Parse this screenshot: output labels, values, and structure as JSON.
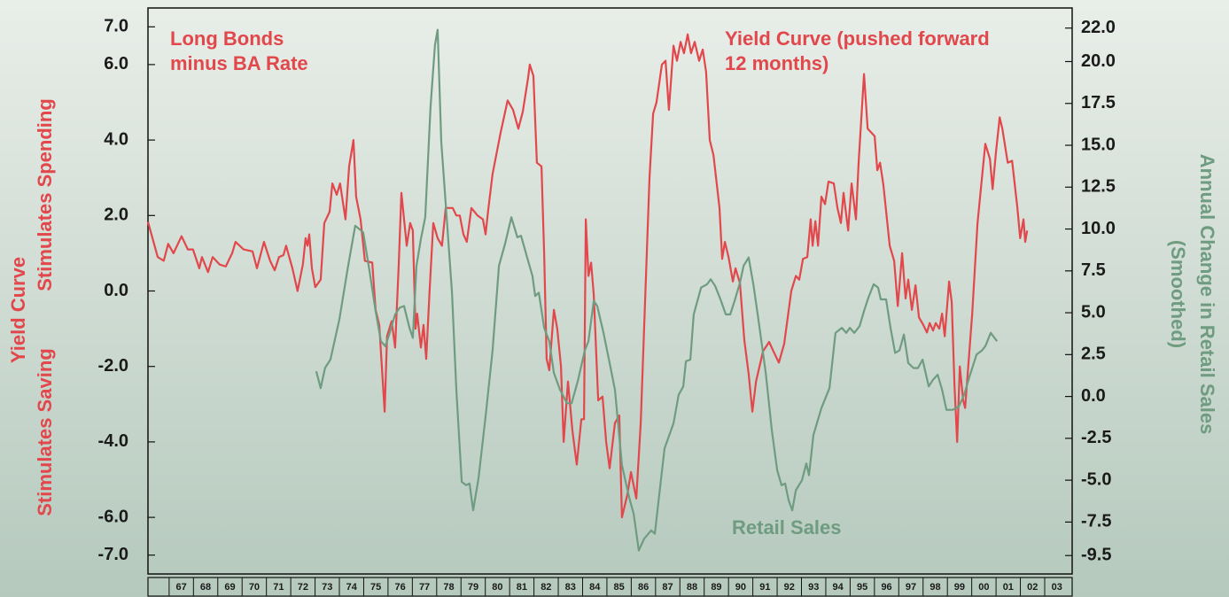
{
  "chart_data": {
    "type": "line",
    "annotations": [
      {
        "text": [
          "Long Bonds",
          "minus BA Rate"
        ],
        "color": "#e2474b"
      },
      {
        "text": [
          "Yield Curve (pushed forward",
          "12 months)"
        ],
        "color": "#e2474b"
      }
    ],
    "ylabel": {
      "main": "Yield Curve",
      "upper": "Stimulates Spending",
      "lower": "Stimulates Saving"
    },
    "y2label": [
      "Annual Change in Retail Sales",
      "(Smoothed)"
    ],
    "xlim": [
      1966.13,
      2004.13
    ],
    "xticks": [
      {
        "value": 1967,
        "label": "67"
      },
      {
        "value": 1968,
        "label": "68"
      },
      {
        "value": 1969,
        "label": "69"
      },
      {
        "value": 1970,
        "label": "70"
      },
      {
        "value": 1971,
        "label": "71"
      },
      {
        "value": 1972,
        "label": "72"
      },
      {
        "value": 1973,
        "label": "73"
      },
      {
        "value": 1974,
        "label": "74"
      },
      {
        "value": 1975,
        "label": "75"
      },
      {
        "value": 1976,
        "label": "76"
      },
      {
        "value": 1977,
        "label": "77"
      },
      {
        "value": 1978,
        "label": "78"
      },
      {
        "value": 1979,
        "label": "79"
      },
      {
        "value": 1980,
        "label": "80"
      },
      {
        "value": 1981,
        "label": "81"
      },
      {
        "value": 1982,
        "label": "82"
      },
      {
        "value": 1983,
        "label": "83"
      },
      {
        "value": 1984,
        "label": "84"
      },
      {
        "value": 1985,
        "label": "85"
      },
      {
        "value": 1986,
        "label": "86"
      },
      {
        "value": 1987,
        "label": "87"
      },
      {
        "value": 1988,
        "label": "88"
      },
      {
        "value": 1989,
        "label": "89"
      },
      {
        "value": 1990,
        "label": "90"
      },
      {
        "value": 1991,
        "label": "91"
      },
      {
        "value": 1992,
        "label": "92"
      },
      {
        "value": 1993,
        "label": "93"
      },
      {
        "value": 1994,
        "label": "94"
      },
      {
        "value": 1995,
        "label": "95"
      },
      {
        "value": 1996,
        "label": "96"
      },
      {
        "value": 1997,
        "label": "97"
      },
      {
        "value": 1998,
        "label": "98"
      },
      {
        "value": 1999,
        "label": "99"
      },
      {
        "value": 2000,
        "label": "00"
      },
      {
        "value": 2001,
        "label": "01"
      },
      {
        "value": 2002,
        "label": "02"
      },
      {
        "value": 2003,
        "label": "03"
      }
    ],
    "ylim": [
      -7.5,
      7.5
    ],
    "yticks": [
      {
        "value": 7,
        "label": "7.0"
      },
      {
        "value": 6,
        "label": "6.0"
      },
      {
        "value": 4,
        "label": "4.0"
      },
      {
        "value": 2,
        "label": "2.0"
      },
      {
        "value": 0,
        "label": "0.0"
      },
      {
        "value": -2,
        "label": "-2.0"
      },
      {
        "value": -4,
        "label": "-4.0"
      },
      {
        "value": -6,
        "label": "-6.0"
      },
      {
        "value": -7,
        "label": "-7.0"
      }
    ],
    "y2lim": [
      -10.6,
      23.2
    ],
    "y2ticks": [
      {
        "value": 22,
        "label": "22.0"
      },
      {
        "value": 20,
        "label": "20.0"
      },
      {
        "value": 17.5,
        "label": "17.5"
      },
      {
        "value": 15,
        "label": "15.0"
      },
      {
        "value": 12.5,
        "label": "12.5"
      },
      {
        "value": 10,
        "label": "10.0"
      },
      {
        "value": 7.5,
        "label": "7.5"
      },
      {
        "value": 5,
        "label": "5.0"
      },
      {
        "value": 2.5,
        "label": "2.5"
      },
      {
        "value": 0,
        "label": "0.0"
      },
      {
        "value": -2.5,
        "label": "-2.5"
      },
      {
        "value": -5,
        "label": "-5.0"
      },
      {
        "value": -7.5,
        "label": "-7.5"
      },
      {
        "value": -9.5,
        "label": "-9.5"
      }
    ],
    "series": [
      {
        "color": "#e2474b",
        "x": [
          1966.13,
          1966.53,
          1966.78,
          1966.96,
          1967.18,
          1967.51,
          1967.77,
          1967.98,
          1968.24,
          1968.35,
          1968.6,
          1968.79,
          1969.08,
          1969.33,
          1969.59,
          1969.73,
          1970.06,
          1970.43,
          1970.61,
          1970.9,
          1971.15,
          1971.34,
          1971.52,
          1971.7,
          1971.81,
          1972.07,
          1972.28,
          1972.5,
          1972.61,
          1972.69,
          1972.76,
          1972.87,
          1973.01,
          1973.23,
          1973.38,
          1973.6,
          1973.71,
          1973.89,
          1974.03,
          1974.25,
          1974.4,
          1974.58,
          1974.69,
          1974.87,
          1975.05,
          1975.35,
          1975.49,
          1975.64,
          1975.86,
          1975.96,
          1976.15,
          1976.29,
          1976.44,
          1976.55,
          1976.77,
          1976.91,
          1977.02,
          1977.13,
          1977.2,
          1977.35,
          1977.46,
          1977.57,
          1977.71,
          1977.86,
          1978.04,
          1978.22,
          1978.37,
          1978.66,
          1978.81,
          1978.95,
          1979.1,
          1979.24,
          1979.43,
          1979.68,
          1979.9,
          1980.01,
          1980.12,
          1980.3,
          1980.63,
          1980.92,
          1981.14,
          1981.36,
          1981.54,
          1981.76,
          1981.83,
          1981.98,
          1982.12,
          1982.31,
          1982.42,
          1982.52,
          1982.63,
          1982.82,
          1982.96,
          1983.11,
          1983.22,
          1983.4,
          1983.58,
          1983.76,
          1983.95,
          1984.06,
          1984.13,
          1984.24,
          1984.35,
          1984.46,
          1984.64,
          1984.82,
          1984.97,
          1985.11,
          1985.33,
          1985.51,
          1985.62,
          1985.84,
          1985.99,
          1986.21,
          1986.39,
          1986.75,
          1986.9,
          1987.04,
          1987.26,
          1987.41,
          1987.55,
          1987.74,
          1987.88,
          1988.03,
          1988.17,
          1988.32,
          1988.46,
          1988.61,
          1988.79,
          1988.94,
          1989.08,
          1989.23,
          1989.38,
          1989.63,
          1989.74,
          1989.85,
          1990.0,
          1990.18,
          1990.29,
          1990.47,
          1990.65,
          1990.83,
          1990.98,
          1991.13,
          1991.42,
          1991.67,
          1991.85,
          1992.07,
          1992.29,
          1992.58,
          1992.77,
          1992.91,
          1993.06,
          1993.24,
          1993.38,
          1993.46,
          1993.57,
          1993.68,
          1993.82,
          1993.97,
          1994.11,
          1994.33,
          1994.48,
          1994.62,
          1994.73,
          1994.92,
          1995.06,
          1995.24,
          1995.35,
          1995.57,
          1995.72,
          1996.01,
          1996.12,
          1996.23,
          1996.37,
          1996.63,
          1996.81,
          1996.96,
          1997.14,
          1997.28,
          1997.39,
          1997.54,
          1997.69,
          1997.83,
          1998.01,
          1998.16,
          1998.27,
          1998.41,
          1998.52,
          1998.67,
          1998.78,
          1998.89,
          1999.07,
          1999.18,
          1999.29,
          1999.4,
          1999.51,
          1999.65,
          1999.73,
          2000.02,
          2000.24,
          2000.42,
          2000.56,
          2000.75,
          2000.86,
          2001.0,
          2001.15,
          2001.26,
          2001.48,
          2001.66,
          2001.88,
          2001.99,
          2002.13,
          2002.2,
          2002.28
        ],
        "values": [
          1.83,
          0.9,
          0.8,
          1.25,
          1.0,
          1.45,
          1.1,
          1.1,
          0.6,
          0.9,
          0.5,
          0.9,
          0.7,
          0.65,
          1.0,
          1.3,
          1.1,
          1.05,
          0.6,
          1.3,
          0.8,
          0.55,
          0.9,
          0.95,
          1.2,
          0.6,
          0.0,
          0.7,
          1.4,
          1.2,
          1.5,
          0.6,
          0.1,
          0.3,
          1.8,
          2.1,
          2.85,
          2.55,
          2.85,
          1.9,
          3.3,
          4.0,
          2.5,
          1.9,
          0.8,
          0.75,
          -0.5,
          -0.9,
          -3.2,
          -1.2,
          -0.8,
          -1.5,
          0.7,
          2.6,
          1.2,
          1.8,
          1.6,
          -1.0,
          -0.6,
          -1.5,
          -0.9,
          -1.8,
          0.0,
          1.8,
          1.4,
          1.2,
          2.2,
          2.2,
          2.0,
          2.0,
          1.5,
          1.3,
          2.2,
          2.0,
          1.9,
          1.5,
          2.15,
          3.1,
          4.2,
          5.05,
          4.8,
          4.3,
          4.75,
          5.65,
          6.0,
          5.7,
          3.4,
          3.3,
          1.0,
          -1.8,
          -2.1,
          -0.5,
          -1.0,
          -2.0,
          -4.0,
          -2.4,
          -3.7,
          -4.6,
          -3.4,
          -3.4,
          1.9,
          0.4,
          0.75,
          -0.1,
          -2.9,
          -2.8,
          -4.0,
          -4.7,
          -3.5,
          -3.3,
          -6.0,
          -5.4,
          -4.8,
          -5.5,
          -3.5,
          3.0,
          4.7,
          5.0,
          6.0,
          6.1,
          4.8,
          6.5,
          6.1,
          6.6,
          6.3,
          6.8,
          6.3,
          6.6,
          6.1,
          6.4,
          5.8,
          4.0,
          3.6,
          2.2,
          0.85,
          1.3,
          0.9,
          0.25,
          0.6,
          0.2,
          -1.3,
          -2.2,
          -3.2,
          -2.4,
          -1.6,
          -1.35,
          -1.6,
          -1.9,
          -1.4,
          0.0,
          0.4,
          0.3,
          0.85,
          0.9,
          1.9,
          1.2,
          1.85,
          1.2,
          2.5,
          2.3,
          2.9,
          2.85,
          2.2,
          1.8,
          2.6,
          1.6,
          2.85,
          1.9,
          3.4,
          5.75,
          4.3,
          4.1,
          3.2,
          3.4,
          2.8,
          1.2,
          0.8,
          -0.4,
          1.0,
          -0.2,
          0.3,
          -0.5,
          0.15,
          -0.7,
          -0.9,
          -1.1,
          -0.85,
          -1.05,
          -0.85,
          -1.0,
          -0.6,
          -1.2,
          0.25,
          -0.3,
          -2.5,
          -4.0,
          -2.0,
          -2.9,
          -3.1,
          -0.6,
          1.8,
          3.0,
          3.9,
          3.5,
          2.7,
          3.7,
          4.6,
          4.3,
          3.4,
          3.45,
          2.2,
          1.4,
          1.9,
          1.3,
          1.6
        ]
      },
      {
        "name": "Retail Sales",
        "color": "#6f9c80",
        "axis": "y2",
        "x": [
          1973.05,
          1973.23,
          1973.41,
          1973.63,
          1974.0,
          1974.36,
          1974.65,
          1974.98,
          1975.24,
          1975.49,
          1975.71,
          1975.89,
          1976.07,
          1976.29,
          1976.48,
          1976.66,
          1976.88,
          1977.02,
          1977.17,
          1977.35,
          1977.53,
          1977.75,
          1977.93,
          1978.04,
          1978.19,
          1978.41,
          1978.63,
          1978.81,
          1979.03,
          1979.21,
          1979.35,
          1979.5,
          1979.72,
          1980.01,
          1980.3,
          1980.56,
          1980.81,
          1981.07,
          1981.32,
          1981.47,
          1981.72,
          1981.94,
          1982.05,
          1982.2,
          1982.42,
          1982.63,
          1982.82,
          1983.07,
          1983.36,
          1983.55,
          1983.8,
          1984.09,
          1984.24,
          1984.46,
          1984.6,
          1984.86,
          1985.11,
          1985.33,
          1985.62,
          1985.91,
          1986.1,
          1986.31,
          1986.53,
          1986.82,
          1986.97,
          1987.19,
          1987.37,
          1987.74,
          1987.95,
          1988.14,
          1988.25,
          1988.43,
          1988.57,
          1988.87,
          1989.12,
          1989.27,
          1989.45,
          1989.67,
          1989.89,
          1990.07,
          1990.25,
          1990.47,
          1990.62,
          1990.83,
          1991.02,
          1991.23,
          1991.53,
          1991.78,
          1992.0,
          1992.18,
          1992.33,
          1992.47,
          1992.62,
          1992.77,
          1993.02,
          1993.2,
          1993.31,
          1993.49,
          1993.82,
          1994.15,
          1994.4,
          1994.66,
          1994.84,
          1994.99,
          1995.17,
          1995.39,
          1995.57,
          1995.75,
          1995.97,
          1996.15,
          1996.26,
          1996.48,
          1996.66,
          1996.85,
          1997.03,
          1997.21,
          1997.39,
          1997.61,
          1997.79,
          1997.98,
          1998.23,
          1998.41,
          1998.6,
          1998.78,
          1998.96,
          1999.22,
          1999.47,
          1999.69,
          1999.91,
          2000.2,
          2000.42,
          2000.56,
          2000.78,
          2001.04
        ],
        "values": [
          1.5,
          0.5,
          1.7,
          2.2,
          4.6,
          7.8,
          10.2,
          9.8,
          7.5,
          5.1,
          3.3,
          3.0,
          3.8,
          4.9,
          5.3,
          5.4,
          4.1,
          3.5,
          7.8,
          9.4,
          10.7,
          17.3,
          21.0,
          21.9,
          15.2,
          10.7,
          6.2,
          0.4,
          -5.1,
          -5.3,
          -5.2,
          -6.8,
          -4.9,
          -1.2,
          2.75,
          7.8,
          9.1,
          10.7,
          9.5,
          9.6,
          8.3,
          7.2,
          6.0,
          6.2,
          4.1,
          3.3,
          1.4,
          0.4,
          -0.4,
          -0.4,
          0.9,
          2.75,
          3.3,
          5.7,
          5.4,
          3.8,
          2.0,
          0.4,
          -4.1,
          -6.0,
          -7.0,
          -9.2,
          -8.5,
          -8.0,
          -8.2,
          -5.4,
          -3.1,
          -1.6,
          0.1,
          0.6,
          2.1,
          2.2,
          4.9,
          6.5,
          6.7,
          7.0,
          6.6,
          5.8,
          4.9,
          4.9,
          5.7,
          6.8,
          7.8,
          8.3,
          6.7,
          4.6,
          1.4,
          -2.0,
          -4.4,
          -5.3,
          -5.2,
          -6.2,
          -6.8,
          -5.6,
          -5.0,
          -4.0,
          -4.7,
          -2.3,
          -0.7,
          0.5,
          3.8,
          4.1,
          3.8,
          4.1,
          3.8,
          4.2,
          5.1,
          5.9,
          6.7,
          6.5,
          5.8,
          5.8,
          4.1,
          2.6,
          2.75,
          3.7,
          2.0,
          1.7,
          1.7,
          2.2,
          0.6,
          1.0,
          1.3,
          0.4,
          -0.8,
          -0.8,
          -0.6,
          0.1,
          1.2,
          2.5,
          2.75,
          3.0,
          3.8,
          3.3
        ]
      }
    ]
  }
}
